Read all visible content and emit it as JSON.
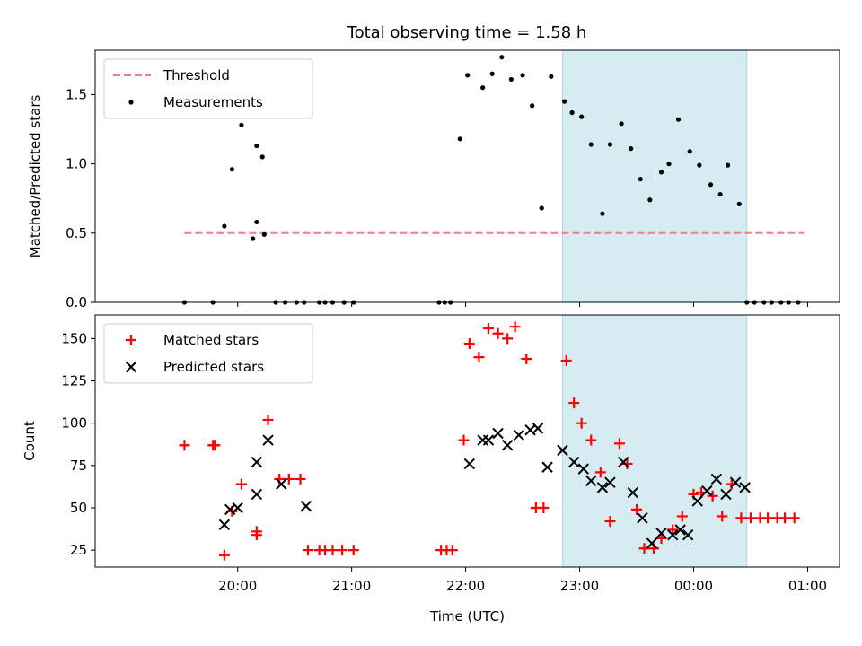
{
  "title": "Total observing time = 1.58 h",
  "colors": {
    "threshold": "#f08080",
    "measurement": "#000000",
    "matched": "#ff0000",
    "predicted": "#000000",
    "span_fill": "#add8e6"
  },
  "chart_data": [
    {
      "type": "scatter",
      "panel": "top",
      "ylabel": "Matched/Predicted stars",
      "ylim": [
        0,
        1.82
      ],
      "yticks": [
        0,
        0.5,
        1.0,
        1.5
      ],
      "ytick_labels": [
        "0.0",
        "0.5",
        "1.0",
        "1.5"
      ],
      "legend": {
        "placement": "upper-left",
        "entries": [
          "Threshold",
          "Measurements"
        ]
      },
      "shaded_span": [
        "22:51",
        "00:28"
      ],
      "threshold": {
        "name": "Threshold",
        "y": 0.5,
        "x_range": [
          "19:32",
          "00:58"
        ]
      },
      "series": [
        {
          "name": "Measurements",
          "x": [
            "19:32",
            "19:47",
            "19:53",
            "19:57",
            "20:02",
            "20:08",
            "20:10",
            "20:10",
            "20:13",
            "20:14",
            "20:20",
            "20:25",
            "20:31",
            "20:35",
            "20:43",
            "20:46",
            "20:50",
            "20:56",
            "21:01",
            "21:46",
            "21:49",
            "21:52",
            "21:57",
            "22:01",
            "22:09",
            "22:14",
            "22:19",
            "22:24",
            "22:30",
            "22:35",
            "22:40",
            "22:45",
            "22:52",
            "22:56",
            "23:01",
            "23:06",
            "23:12",
            "23:16",
            "23:22",
            "23:27",
            "23:32",
            "23:37",
            "23:43",
            "23:47",
            "23:52",
            "23:58",
            "00:03",
            "00:09",
            "00:14",
            "00:18",
            "00:24",
            "00:28",
            "00:32",
            "00:37",
            "00:41",
            "00:46",
            "00:50",
            "00:55"
          ],
          "y": [
            0,
            0,
            0.55,
            0.96,
            1.28,
            0.46,
            0.58,
            1.13,
            1.05,
            0.49,
            0,
            0,
            0,
            0,
            0,
            0,
            0,
            0,
            0,
            0,
            0,
            0,
            1.18,
            1.64,
            1.55,
            1.65,
            1.77,
            1.61,
            1.64,
            1.42,
            0.68,
            1.63,
            1.45,
            1.37,
            1.34,
            1.14,
            0.64,
            1.14,
            1.29,
            1.11,
            0.89,
            0.74,
            0.94,
            1.0,
            1.32,
            1.09,
            0.99,
            0.85,
            0.78,
            0.99,
            0.71,
            0,
            0,
            0,
            0,
            0,
            0,
            0
          ]
        }
      ]
    },
    {
      "type": "scatter",
      "panel": "bottom",
      "xlabel": "Time (UTC)",
      "ylabel": "Count",
      "ylim": [
        15,
        164
      ],
      "yticks": [
        25,
        50,
        75,
        100,
        125,
        150
      ],
      "ytick_labels": [
        "25",
        "50",
        "75",
        "100",
        "125",
        "150"
      ],
      "xticks": [
        "20:00",
        "21:00",
        "22:00",
        "23:00",
        "00:00",
        "01:00"
      ],
      "legend": {
        "placement": "upper-left",
        "entries": [
          "Matched stars",
          "Predicted stars"
        ]
      },
      "shaded_span": [
        "22:51",
        "00:28"
      ],
      "series": [
        {
          "name": "Matched stars",
          "x": [
            "19:32",
            "19:47",
            "19:48",
            "19:53",
            "19:57",
            "20:02",
            "20:10",
            "20:10",
            "20:16",
            "20:22",
            "20:27",
            "20:33",
            "20:37",
            "20:43",
            "20:46",
            "20:50",
            "20:55",
            "21:01",
            "21:47",
            "21:50",
            "21:53",
            "21:59",
            "22:02",
            "22:07",
            "22:12",
            "22:17",
            "22:22",
            "22:26",
            "22:32",
            "22:37",
            "22:41",
            "22:53",
            "22:57",
            "23:01",
            "23:06",
            "23:11",
            "23:16",
            "23:21",
            "23:25",
            "23:30",
            "23:34",
            "23:39",
            "23:43",
            "23:49",
            "23:54",
            "24:00",
            "24:04",
            "24:10",
            "24:15",
            "24:20",
            "24:25",
            "24:30",
            "24:35",
            "24:39",
            "24:44",
            "24:48",
            "24:53"
          ],
          "y": [
            87,
            87,
            87,
            22,
            48,
            64,
            36,
            34,
            102,
            67,
            67,
            67,
            25,
            25,
            25,
            25,
            25,
            25,
            25,
            25,
            25,
            90,
            147,
            139,
            156,
            153,
            150,
            157,
            138,
            50,
            50,
            137,
            112,
            100,
            90,
            71,
            42,
            88,
            76,
            49,
            26,
            26,
            32,
            37,
            45,
            58,
            59,
            57,
            45,
            64,
            44,
            44,
            44,
            44,
            44,
            44,
            44
          ]
        },
        {
          "name": "Predicted stars",
          "x": [
            "19:53",
            "19:56",
            "20:00",
            "20:10",
            "20:10",
            "20:16",
            "20:23",
            "20:36",
            "22:02",
            "22:09",
            "22:12",
            "22:17",
            "22:22",
            "22:28",
            "22:34",
            "22:38",
            "22:43",
            "22:51",
            "22:57",
            "23:02",
            "23:06",
            "23:12",
            "23:16",
            "23:23",
            "23:28",
            "23:33",
            "23:38",
            "23:43",
            "23:49",
            "23:53",
            "23:57",
            "24:02",
            "24:07",
            "24:12",
            "24:17",
            "24:22",
            "24:27"
          ],
          "y": [
            40,
            49,
            50,
            77,
            58,
            90,
            64,
            51,
            76,
            90,
            90,
            94,
            87,
            93,
            96,
            97,
            74,
            84,
            77,
            73,
            66,
            62,
            65,
            77,
            59,
            44,
            29,
            35,
            34,
            37,
            34,
            54,
            60,
            67,
            58,
            65,
            62
          ]
        }
      ]
    }
  ]
}
